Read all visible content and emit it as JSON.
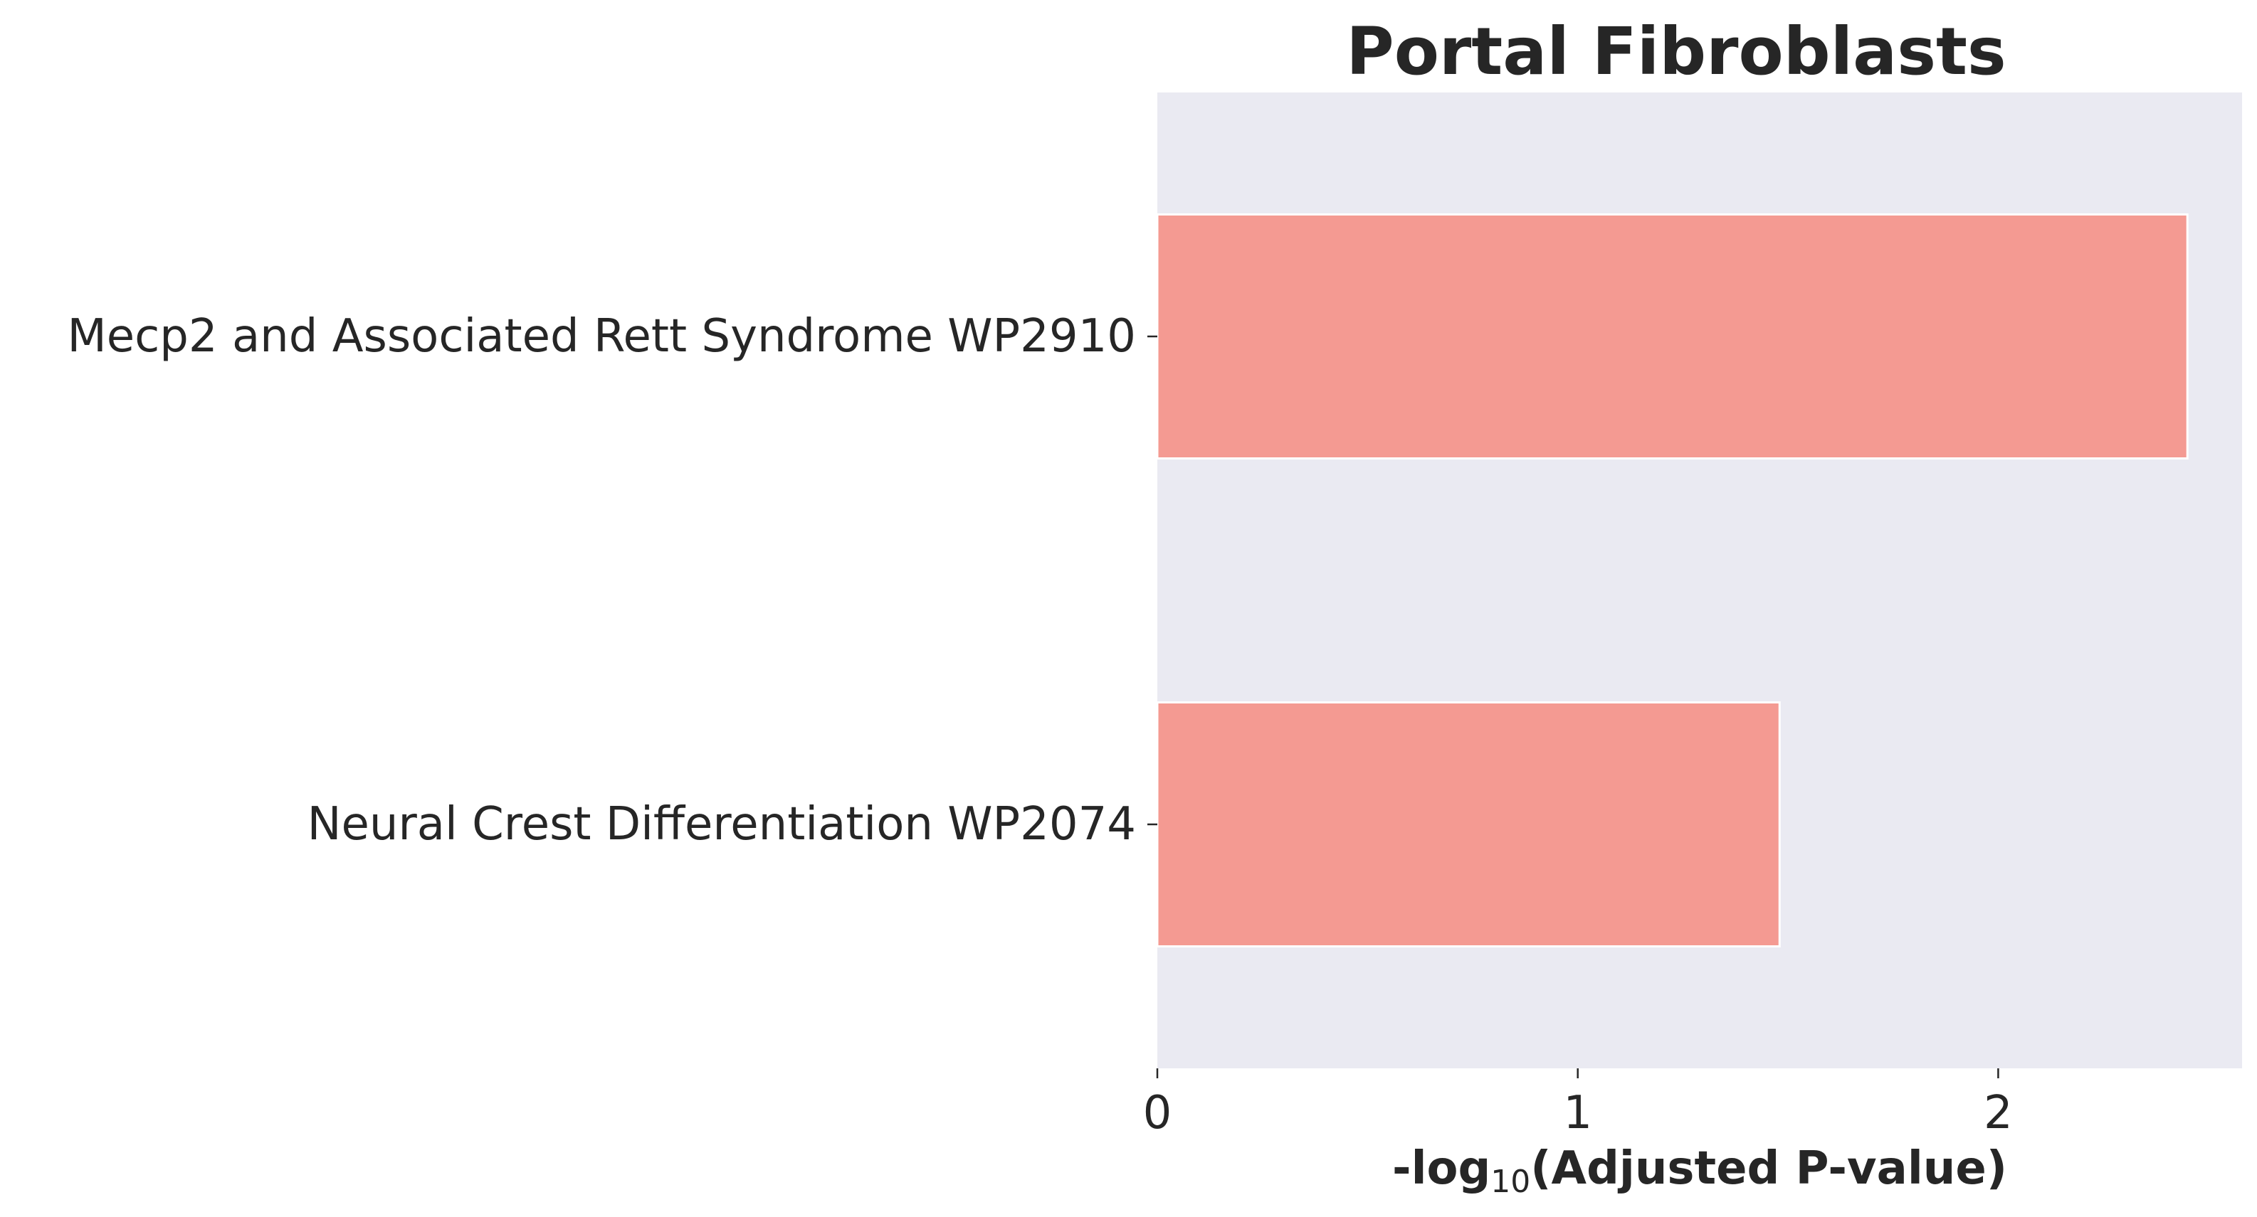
{
  "chart_data": {
    "type": "bar",
    "orientation": "horizontal",
    "title": "Portal Fibroblasts",
    "xlabel": {
      "prefix": "-log",
      "subscript": "10",
      "suffix": "(Adjusted P-value)"
    },
    "ylabel": "",
    "categories": [
      "Mecp2 and Associated Rett Syndrome WP2910",
      "Neural Crest Differentiation WP2074"
    ],
    "values": [
      2.45,
      1.48
    ],
    "xlim": [
      0,
      2.58
    ],
    "xticks": [
      "0",
      "1",
      "2"
    ],
    "grid": false,
    "colors": {
      "bar": "#f49a92",
      "bar_edge": "#ffffff",
      "plot_background": "#eaeaf2",
      "text": "#262626"
    }
  }
}
